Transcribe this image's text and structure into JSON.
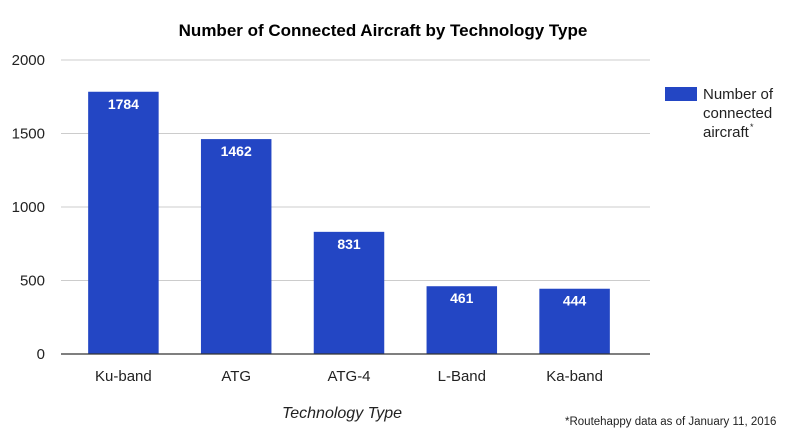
{
  "chart_data": {
    "type": "bar",
    "title": "Number of Connected Aircraft by Technology Type",
    "xlabel": "Technology Type",
    "ylabel": "",
    "categories": [
      "Ku-band",
      "ATG",
      "ATG-4",
      "L-Band",
      "Ka-band"
    ],
    "series": [
      {
        "name": "Number of connected aircraft*",
        "values": [
          1784,
          1462,
          831,
          461,
          444
        ],
        "color": "#2346c4"
      }
    ],
    "data_labels": [
      "1784",
      "1462",
      "831",
      "461",
      "444"
    ],
    "yticks": [
      0,
      500,
      1000,
      1500,
      2000
    ],
    "ylim": [
      0,
      2000
    ],
    "grid": true,
    "legend": {
      "position": "top-right",
      "lines": [
        "Number of",
        "connected",
        "aircraft"
      ],
      "superscript": "*"
    },
    "footnote": "*Routehappy data as of January 11, 2016"
  }
}
